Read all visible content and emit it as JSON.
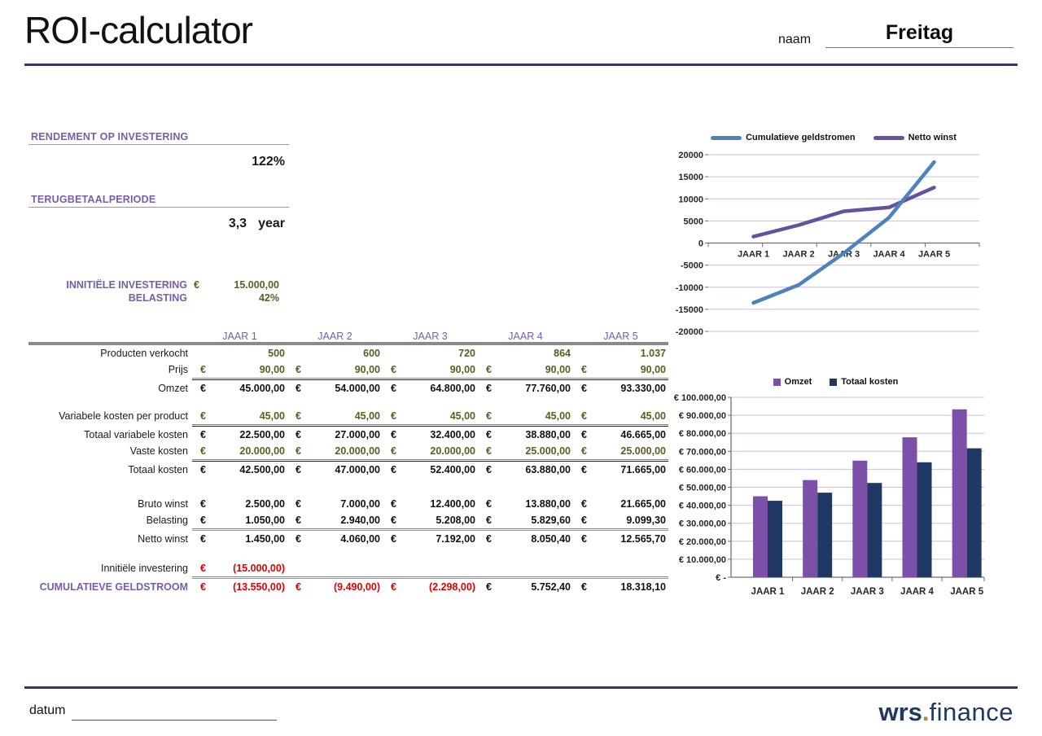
{
  "header": {
    "title": "ROI-calculator",
    "name_label": "naam",
    "name_value": "Freitag"
  },
  "summary": {
    "roi_title": "RENDEMENT OP INVESTERING",
    "roi_value": "122%",
    "payback_title": "TERUGBETAALPERIODE",
    "payback_value": "3,3",
    "payback_unit": "year",
    "investment_label": "INNITIËLE INVESTERING",
    "currency": "€",
    "investment_value": "15.000,00",
    "tax_label": "BELASTING",
    "tax_value": "42%"
  },
  "table": {
    "col_headers": [
      "JAAR 1",
      "JAAR 2",
      "JAAR 3",
      "JAAR 4",
      "JAAR 5"
    ],
    "rows": [
      {
        "label": "Producten verkocht",
        "style": "input",
        "euro": false,
        "cells": [
          "500",
          "600",
          "720",
          "864",
          "1.037"
        ]
      },
      {
        "label": "Prijs",
        "style": "input",
        "euro": true,
        "underline": true,
        "cells": [
          "90,00",
          "90,00",
          "90,00",
          "90,00",
          "90,00"
        ],
        "divider": "black"
      },
      {
        "label": "Omzet",
        "style": "result",
        "euro": true,
        "cells": [
          "45.000,00",
          "54.000,00",
          "64.800,00",
          "77.760,00",
          "93.330,00"
        ]
      },
      {
        "spacer": true,
        "h": 14
      },
      {
        "label": "Variabele kosten per product",
        "style": "input",
        "euro": true,
        "underline": true,
        "cells": [
          "45,00",
          "45,00",
          "45,00",
          "45,00",
          "45,00"
        ],
        "divider": "black"
      },
      {
        "label": "Totaal variabele kosten",
        "style": "result",
        "euro": true,
        "cells": [
          "22.500,00",
          "27.000,00",
          "32.400,00",
          "38.880,00",
          "46.665,00"
        ]
      },
      {
        "label": "Vaste kosten",
        "style": "input",
        "euro": true,
        "underline": true,
        "cells": [
          "20.000,00",
          "20.000,00",
          "20.000,00",
          "25.000,00",
          "25.000,00"
        ],
        "divider": "black"
      },
      {
        "label": "Totaal kosten",
        "style": "result",
        "euro": true,
        "cells": [
          "42.500,00",
          "47.000,00",
          "52.400,00",
          "63.880,00",
          "71.665,00"
        ]
      },
      {
        "spacer": true,
        "h": 22
      },
      {
        "label": "Bruto winst",
        "style": "result",
        "euro": true,
        "cells": [
          "2.500,00",
          "7.000,00",
          "12.400,00",
          "13.880,00",
          "21.665,00"
        ]
      },
      {
        "label": "Belasting",
        "style": "result",
        "euro": true,
        "underline": true,
        "cells": [
          "1.050,00",
          "2.940,00",
          "5.208,00",
          "5.829,60",
          "9.099,30"
        ],
        "divider": "gray"
      },
      {
        "label": "Netto winst",
        "style": "result",
        "euro": true,
        "cells": [
          "1.450,00",
          "4.060,00",
          "7.192,00",
          "8.050,40",
          "12.565,70"
        ]
      },
      {
        "spacer": true,
        "h": 16
      },
      {
        "label": "Innitiële investering",
        "style": "negative",
        "euro": true,
        "underline": true,
        "cells": [
          "(15.000,00)",
          "",
          "",
          "",
          ""
        ],
        "divider": "gray"
      },
      {
        "label": "CUMULATIEVE GELDSTROOM",
        "label_style": "purple-caps",
        "style": "cumulative",
        "euro": true,
        "cells": [
          "(13.550,00)",
          "(9.490,00)",
          "(2.298,00)",
          "5.752,40",
          "18.318,10"
        ]
      }
    ]
  },
  "chart_data": [
    {
      "type": "line",
      "categories": [
        "JAAR 1",
        "JAAR 2",
        "JAAR 3",
        "JAAR 4",
        "JAAR 5"
      ],
      "series": [
        {
          "name": "Cumulatieve geldstromen",
          "color": "#4F81BD",
          "values": [
            -13550,
            -9490,
            -2298,
            5752.4,
            18318.1
          ]
        },
        {
          "name": "Netto winst",
          "color": "#66519E",
          "values": [
            1450,
            4060,
            7192,
            8050.4,
            12565.7
          ]
        }
      ],
      "ylim": [
        -20000,
        20000
      ],
      "ytick": 5000,
      "ytick_labels": [
        "20000",
        "15000",
        "10000",
        "5000",
        "0",
        "-5000",
        "-10000",
        "-15000",
        "-20000"
      ],
      "legend_position": "top",
      "grid": true
    },
    {
      "type": "bar",
      "categories": [
        "JAAR 1",
        "JAAR 2",
        "JAAR 3",
        "JAAR 4",
        "JAAR 5"
      ],
      "series": [
        {
          "name": "Omzet",
          "color": "#7C4FA8",
          "values": [
            45000,
            54000,
            64800,
            77760,
            93330
          ]
        },
        {
          "name": "Totaal kosten",
          "color": "#1F3864",
          "values": [
            42500,
            47000,
            52400,
            63880,
            71665
          ]
        }
      ],
      "ylim": [
        0,
        100000
      ],
      "ytick": 10000,
      "ytick_labels": [
        "€ 100.000,00",
        "€ 90.000,00",
        "€ 80.000,00",
        "€ 70.000,00",
        "€ 60.000,00",
        "€ 50.000,00",
        "€ 40.000,00",
        "€ 30.000,00",
        "€ 20.000,00",
        "€ 10.000,00",
        "€ -"
      ],
      "legend_position": "top",
      "grid": true
    }
  ],
  "footer": {
    "datum_label": "datum",
    "logo_bold": "wrs",
    "logo_dot": ".",
    "logo_rest": "finance"
  },
  "colors": {
    "accent_purple": "#7A5CAD",
    "olive": "#5E5C20",
    "negative_red": "#E00000",
    "navy_rule": "#2C3A6B",
    "logo_navy": "#1F3864",
    "logo_gold": "#A9894B",
    "gridline": "#C8BFDE",
    "axis_gray": "#6E6E6E"
  }
}
